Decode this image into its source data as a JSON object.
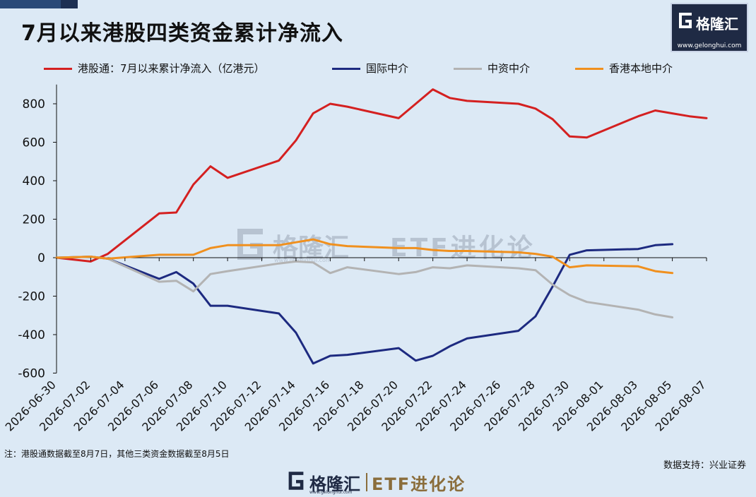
{
  "title": "7月以来港股四类资金累计净流入",
  "brand": {
    "name": "格隆汇",
    "url": "www.gelonghui.com",
    "etf": "ETF进化论",
    "footer_url": "www.gelonghui.com"
  },
  "colors": {
    "red": "#d42020",
    "navy": "#1d2a80",
    "gray": "#b3b3b3",
    "orange": "#f0901e",
    "brand_dark": "#1f2a44"
  },
  "footnote": "注：港股通数据截至8月7日，其他三类资金数据截至8月5日",
  "source": "数据支持：兴业证券",
  "chart_data": {
    "type": "line",
    "title": "7月以来港股四类资金累计净流入",
    "xlabel": "",
    "ylabel": "",
    "ylim": [
      -600,
      900
    ],
    "yticks": [
      -600,
      -400,
      -200,
      0,
      200,
      400,
      600,
      800
    ],
    "ytick_labels": [
      "-600",
      "-400",
      "-200",
      "0",
      "200",
      "400",
      "600",
      "800"
    ],
    "xtick_labels": [
      "2026-06-30",
      "2026-07-02",
      "2026-07-04",
      "2026-07-06",
      "2026-07-08",
      "2026-07-10",
      "2026-07-12",
      "2026-07-14",
      "2026-07-16",
      "2026-07-18",
      "2026-07-20",
      "2026-07-22",
      "2026-07-24",
      "2026-07-26",
      "2026-07-28",
      "2026-07-30",
      "2026-08-01",
      "2026-08-03",
      "2026-08-05",
      "2026-08-07"
    ],
    "x_range": [
      "2026-06-30",
      "2026-08-07"
    ],
    "grid": false,
    "legend_position": "top",
    "series": [
      {
        "name": "港股通：7月以来累计净流入（亿港元）",
        "color": "#d42020",
        "x": [
          "2026-06-30",
          "2026-07-02",
          "2026-07-03",
          "2026-07-06",
          "2026-07-07",
          "2026-07-08",
          "2026-07-09",
          "2026-07-10",
          "2026-07-13",
          "2026-07-14",
          "2026-07-15",
          "2026-07-16",
          "2026-07-17",
          "2026-07-20",
          "2026-07-21",
          "2026-07-22",
          "2026-07-23",
          "2026-07-24",
          "2026-07-27",
          "2026-07-28",
          "2026-07-29",
          "2026-07-30",
          "2026-07-31",
          "2026-08-03",
          "2026-08-04",
          "2026-08-05",
          "2026-08-06",
          "2026-08-07"
        ],
        "y": [
          0,
          -20,
          20,
          230,
          235,
          380,
          475,
          415,
          505,
          610,
          750,
          800,
          785,
          725,
          800,
          875,
          830,
          815,
          800,
          775,
          720,
          630,
          625,
          735,
          765,
          750,
          735,
          725
        ]
      },
      {
        "name": "国际中介",
        "color": "#1d2a80",
        "x": [
          "2026-06-30",
          "2026-07-02",
          "2026-07-03",
          "2026-07-06",
          "2026-07-07",
          "2026-07-08",
          "2026-07-09",
          "2026-07-10",
          "2026-07-13",
          "2026-07-14",
          "2026-07-15",
          "2026-07-16",
          "2026-07-17",
          "2026-07-20",
          "2026-07-21",
          "2026-07-22",
          "2026-07-23",
          "2026-07-24",
          "2026-07-27",
          "2026-07-28",
          "2026-07-29",
          "2026-07-30",
          "2026-07-31",
          "2026-08-03",
          "2026-08-04",
          "2026-08-05"
        ],
        "y": [
          0,
          5,
          -5,
          -110,
          -75,
          -135,
          -250,
          -250,
          -290,
          -390,
          -550,
          -510,
          -505,
          -470,
          -535,
          -510,
          -460,
          -420,
          -380,
          -305,
          -150,
          15,
          38,
          45,
          65,
          70
        ]
      },
      {
        "name": "中资中介",
        "color": "#b3b3b3",
        "x": [
          "2026-06-30",
          "2026-07-02",
          "2026-07-03",
          "2026-07-06",
          "2026-07-07",
          "2026-07-08",
          "2026-07-09",
          "2026-07-10",
          "2026-07-13",
          "2026-07-14",
          "2026-07-15",
          "2026-07-16",
          "2026-07-17",
          "2026-07-20",
          "2026-07-21",
          "2026-07-22",
          "2026-07-23",
          "2026-07-24",
          "2026-07-27",
          "2026-07-28",
          "2026-07-29",
          "2026-07-30",
          "2026-07-31",
          "2026-08-03",
          "2026-08-04",
          "2026-08-05"
        ],
        "y": [
          0,
          5,
          -5,
          -125,
          -120,
          -175,
          -85,
          -70,
          -30,
          -20,
          -25,
          -80,
          -50,
          -85,
          -75,
          -50,
          -55,
          -40,
          -55,
          -65,
          -140,
          -195,
          -230,
          -270,
          -295,
          -310
        ]
      },
      {
        "name": "香港本地中介",
        "color": "#f0901e",
        "x": [
          "2026-06-30",
          "2026-07-02",
          "2026-07-03",
          "2026-07-06",
          "2026-07-07",
          "2026-07-08",
          "2026-07-09",
          "2026-07-10",
          "2026-07-13",
          "2026-07-14",
          "2026-07-15",
          "2026-07-16",
          "2026-07-17",
          "2026-07-20",
          "2026-07-21",
          "2026-07-22",
          "2026-07-23",
          "2026-07-24",
          "2026-07-27",
          "2026-07-28",
          "2026-07-29",
          "2026-07-30",
          "2026-07-31",
          "2026-08-03",
          "2026-08-04",
          "2026-08-05"
        ],
        "y": [
          0,
          5,
          -5,
          15,
          15,
          15,
          50,
          65,
          65,
          80,
          95,
          70,
          60,
          50,
          50,
          40,
          35,
          35,
          28,
          20,
          5,
          -50,
          -40,
          -45,
          -70,
          -80
        ]
      }
    ]
  }
}
